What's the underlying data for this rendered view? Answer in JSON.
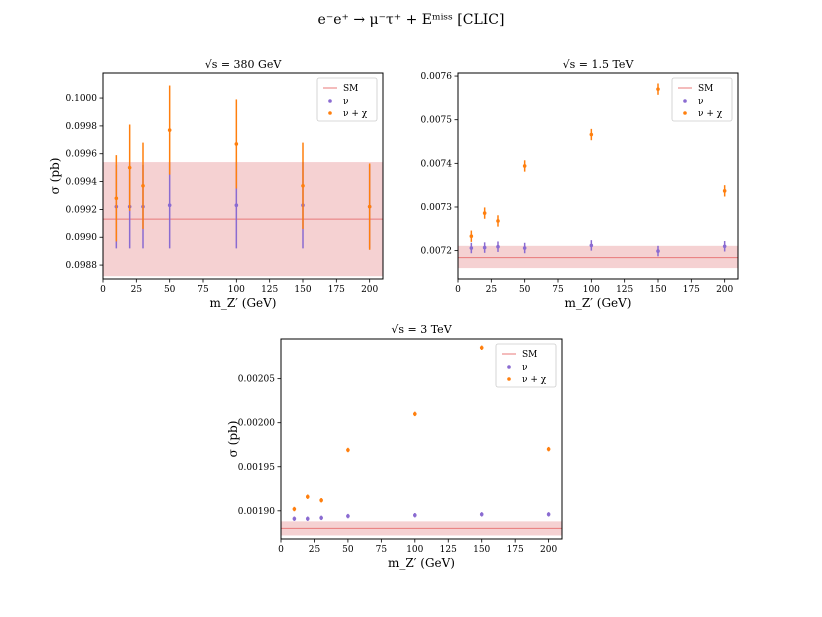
{
  "figure_title": "e⁻e⁺ → μ⁻τ⁺ + Eᵐⁱˢˢ [CLIC]",
  "colors": {
    "sm": "#e8787a",
    "sm_band": "#f2c5c7",
    "nu": "#8a6bd1",
    "nu_chi": "#ff7f0e"
  },
  "chart_data": [
    {
      "type": "scatter",
      "title": "√s = 380 GeV",
      "xlabel": "m_Z′ (GeV)",
      "ylabel": "σ (pb)",
      "xlim": [
        0,
        210
      ],
      "ylim": [
        0.0987,
        0.10018
      ],
      "xticks": [
        0,
        25,
        50,
        75,
        100,
        125,
        150,
        175,
        200
      ],
      "yticks": [
        0.0988,
        0.099,
        0.0992,
        0.0994,
        0.0996,
        0.0998,
        0.1
      ],
      "ytick_labels": [
        "0.0988",
        "0.0990",
        "0.0992",
        "0.0994",
        "0.0996",
        "0.0998",
        "0.1000"
      ],
      "grid": false,
      "legend_position": "top-right",
      "sm": {
        "name": "SM",
        "value": 0.09913,
        "band": [
          0.09872,
          0.09954
        ]
      },
      "series": [
        {
          "name": "ν",
          "x": [
            10,
            20,
            30,
            50,
            100,
            150,
            200
          ],
          "y": [
            0.09922,
            0.09922,
            0.09922,
            0.09923,
            0.09923,
            0.09923,
            0.09922
          ],
          "err": [
            0.0003,
            0.0003,
            0.0003,
            0.00031,
            0.00031,
            0.00031,
            0.0003
          ]
        },
        {
          "name": "ν + χ",
          "x": [
            10,
            20,
            30,
            50,
            100,
            150,
            200
          ],
          "y": [
            0.09928,
            0.0995,
            0.09937,
            0.09977,
            0.09967,
            0.09937,
            0.09922
          ],
          "err": [
            0.00031,
            0.00031,
            0.00031,
            0.00032,
            0.00032,
            0.00031,
            0.00031
          ]
        }
      ]
    },
    {
      "type": "scatter",
      "title": "√s = 1.5 TeV",
      "xlabel": "m_Z′ (GeV)",
      "ylabel": "",
      "xlim": [
        0,
        210
      ],
      "ylim": [
        0.007135,
        0.007607
      ],
      "xticks": [
        0,
        25,
        50,
        75,
        100,
        125,
        150,
        175,
        200
      ],
      "yticks": [
        0.0072,
        0.0073,
        0.0074,
        0.0075,
        0.0076
      ],
      "ytick_labels": [
        "0.0072",
        "0.0073",
        "0.0074",
        "0.0075",
        "0.0076"
      ],
      "grid": false,
      "legend_position": "top-right",
      "sm": {
        "name": "SM",
        "value": 0.007184,
        "band": [
          0.00716,
          0.007211
        ]
      },
      "series": [
        {
          "name": "ν",
          "x": [
            10,
            20,
            30,
            50,
            100,
            150,
            200
          ],
          "y": [
            0.007206,
            0.007207,
            0.007209,
            0.007206,
            0.007212,
            0.007199,
            0.00721
          ],
          "err": [
            1.2e-05,
            1.2e-05,
            1.2e-05,
            1.2e-05,
            1.2e-05,
            1.2e-05,
            1.2e-05
          ]
        },
        {
          "name": "ν + χ",
          "x": [
            10,
            20,
            30,
            50,
            100,
            150,
            200
          ],
          "y": [
            0.007233,
            0.007286,
            0.007268,
            0.007394,
            0.007466,
            0.00757,
            0.007337
          ],
          "err": [
            1.3e-05,
            1.3e-05,
            1.3e-05,
            1.3e-05,
            1.3e-05,
            1.3e-05,
            1.3e-05
          ]
        }
      ]
    },
    {
      "type": "scatter",
      "title": "√s = 3 TeV",
      "xlabel": "m_Z′ (GeV)",
      "ylabel": "σ (pb)",
      "xlim": [
        0,
        210
      ],
      "ylim": [
        0.001868,
        0.002095
      ],
      "xticks": [
        0,
        25,
        50,
        75,
        100,
        125,
        150,
        175,
        200
      ],
      "yticks": [
        0.0019,
        0.00195,
        0.002,
        0.00205
      ],
      "ytick_labels": [
        "0.00190",
        "0.00195",
        "0.00200",
        "0.00205"
      ],
      "grid": false,
      "legend_position": "top-right",
      "sm": {
        "name": "SM",
        "value": 0.00188,
        "band": [
          0.001872,
          0.001888
        ]
      },
      "series": [
        {
          "name": "ν",
          "x": [
            10,
            20,
            30,
            50,
            100,
            150,
            200
          ],
          "y": [
            0.001891,
            0.001891,
            0.001892,
            0.001894,
            0.001895,
            0.001896,
            0.001896
          ],
          "err": [
            2.5e-06,
            2.5e-06,
            2.5e-06,
            2.5e-06,
            2.5e-06,
            2.5e-06,
            2.5e-06
          ]
        },
        {
          "name": "ν + χ",
          "x": [
            10,
            20,
            30,
            50,
            100,
            150,
            200
          ],
          "y": [
            0.001902,
            0.001916,
            0.001912,
            0.001969,
            0.00201,
            0.002085,
            0.00197
          ],
          "err": [
            2.5e-06,
            2.5e-06,
            2.5e-06,
            2.5e-06,
            2.5e-06,
            2.5e-06,
            2.5e-06
          ]
        }
      ]
    }
  ]
}
